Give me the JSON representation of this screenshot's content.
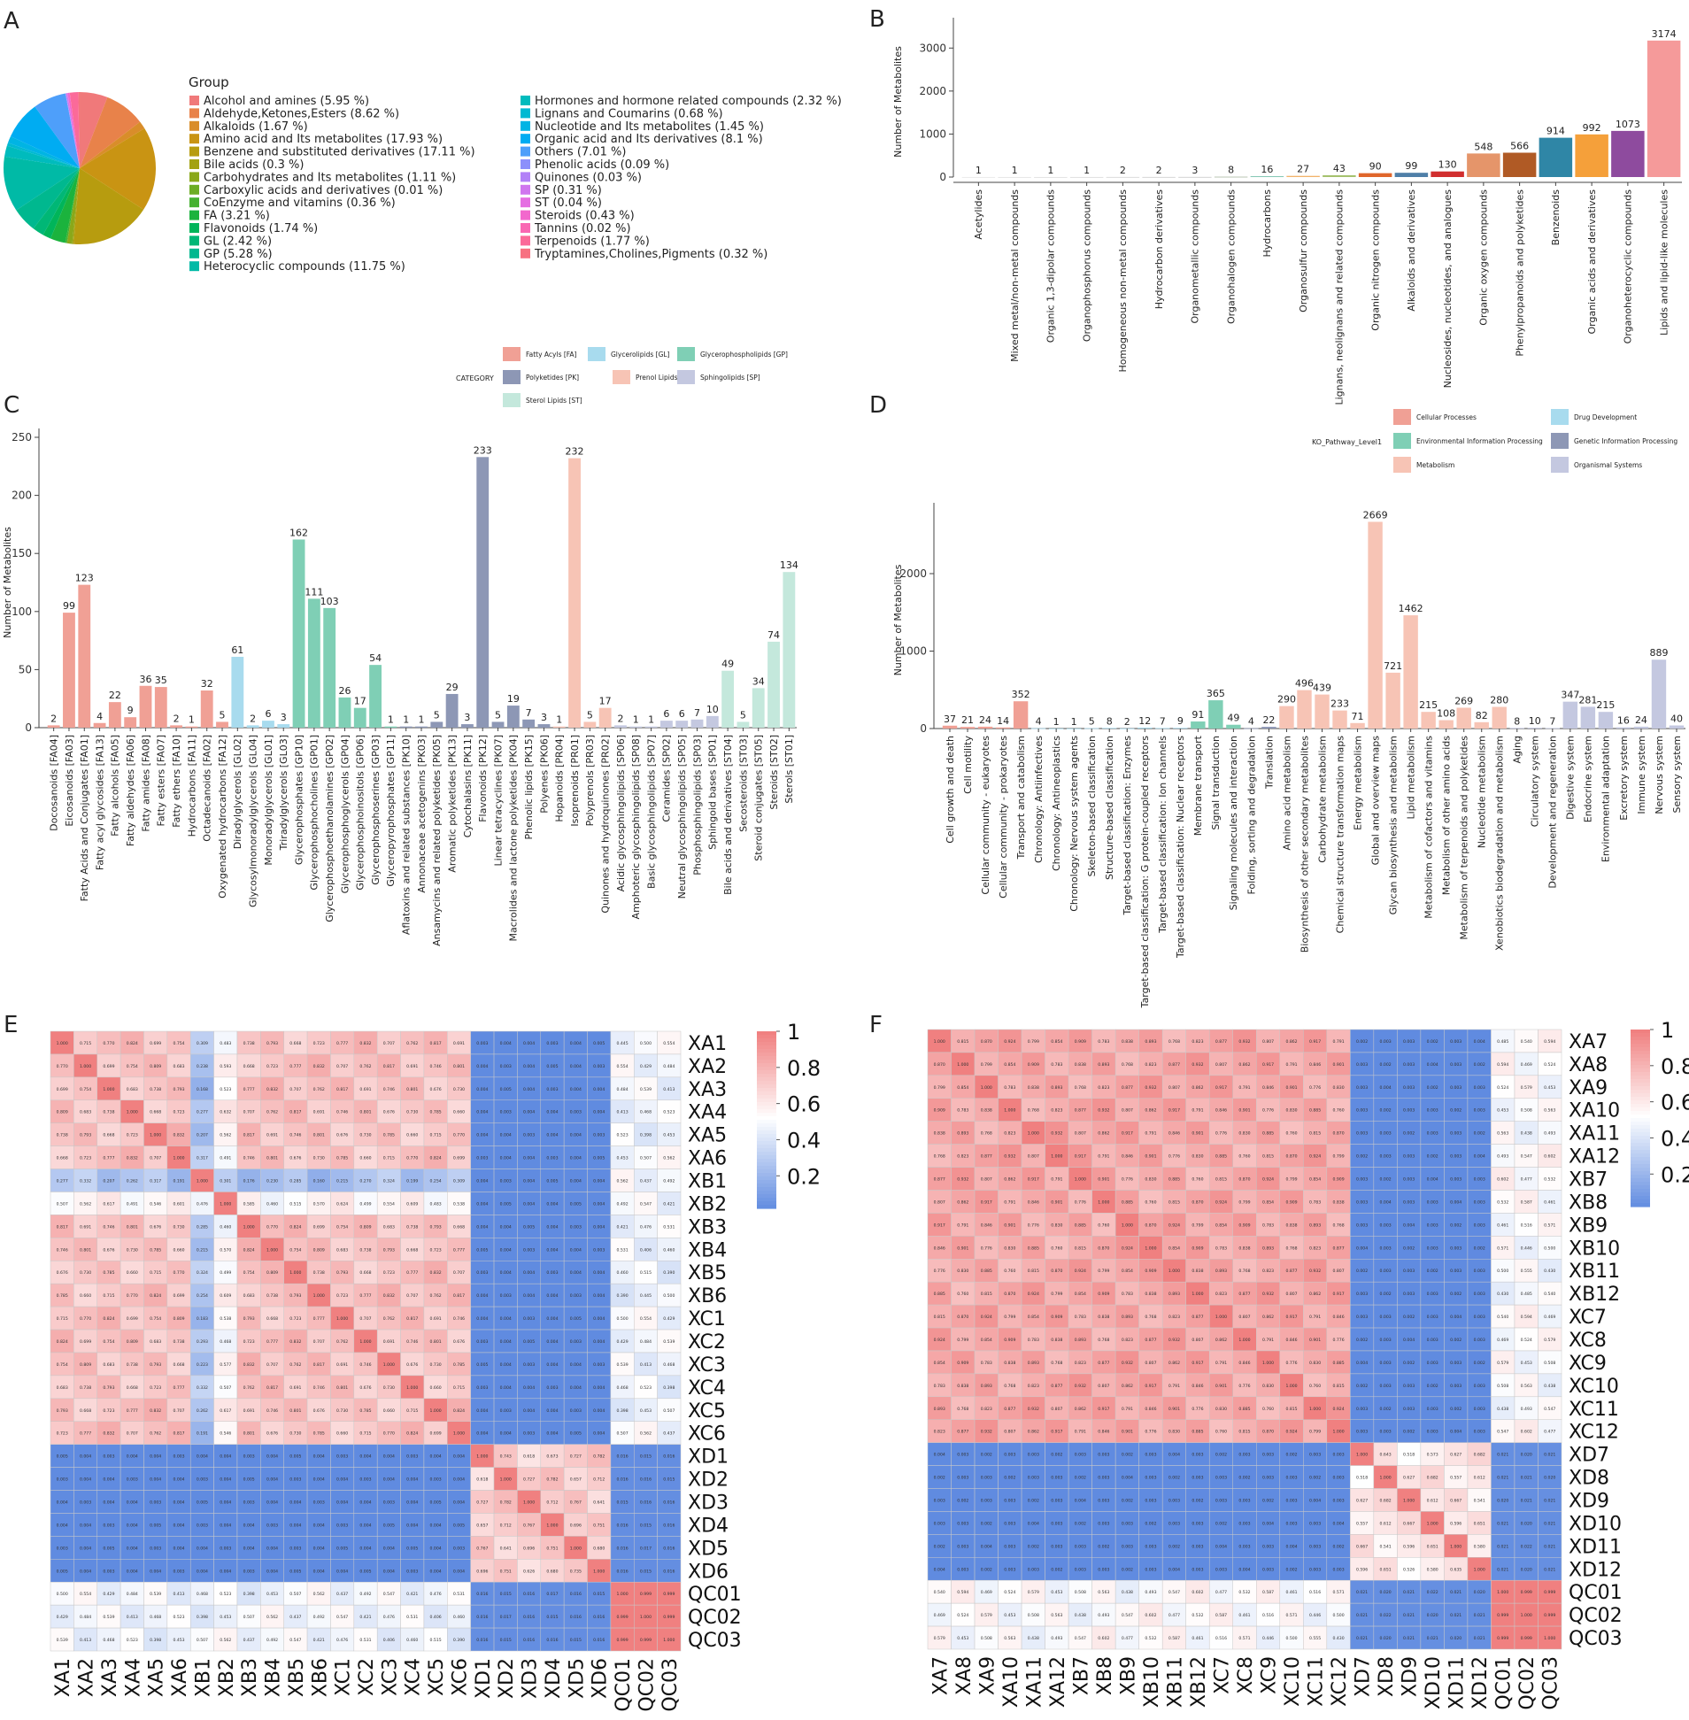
{
  "panel_labels": [
    "A",
    "B",
    "C",
    "D",
    "E",
    "F"
  ],
  "chart_data": [
    {
      "panel": "A",
      "type": "pie",
      "legend_title": "Group",
      "slices": [
        {
          "label": "Alcohol and amines (5.95 %)",
          "value": 5.95,
          "color": "#f0797a"
        },
        {
          "label": "Aldehyde,Ketones,Esters (8.62 %)",
          "value": 8.62,
          "color": "#e8824a"
        },
        {
          "label": "Alkaloids (1.67 %)",
          "value": 1.67,
          "color": "#d98d2a"
        },
        {
          "label": "Amino acid and Its metabolites (17.93 %)",
          "value": 17.93,
          "color": "#c99413"
        },
        {
          "label": "Benzene and substituted derivatives (17.11 %)",
          "value": 17.11,
          "color": "#b79c0f"
        },
        {
          "label": "Bile acids (0.3 %)",
          "value": 0.3,
          "color": "#a3a211"
        },
        {
          "label": "Carbohydrates and Its metabolites (1.11 %)",
          "value": 1.11,
          "color": "#8aa81a"
        },
        {
          "label": "Carboxylic acids and derivatives (0.01 %)",
          "value": 0.01,
          "color": "#6cad24"
        },
        {
          "label": "CoEnzyme and vitamins (0.36 %)",
          "value": 0.36,
          "color": "#45b12f"
        },
        {
          "label": "FA (3.21 %)",
          "value": 3.21,
          "color": "#1bb33d"
        },
        {
          "label": "Flavonoids (1.74 %)",
          "value": 1.74,
          "color": "#00b55a"
        },
        {
          "label": "GL (2.42 %)",
          "value": 2.42,
          "color": "#00b776"
        },
        {
          "label": "GP (5.28 %)",
          "value": 5.28,
          "color": "#00b88f"
        },
        {
          "label": "Heterocyclic compounds (11.75 %)",
          "value": 11.75,
          "color": "#00baa6"
        },
        {
          "label": "Hormones and hormone related compounds (2.32 %)",
          "value": 2.32,
          "color": "#00bbbd"
        },
        {
          "label": "Lignans and Coumarins (0.68 %)",
          "value": 0.68,
          "color": "#00b9d2"
        },
        {
          "label": "Nucleotide and Its metabolites (1.45 %)",
          "value": 1.45,
          "color": "#00b4e4"
        },
        {
          "label": "Organic acid and Its derivatives (8.1 %)",
          "value": 8.1,
          "color": "#00acf2"
        },
        {
          "label": "Others (7.01 %)",
          "value": 7.01,
          "color": "#4e9ffa"
        },
        {
          "label": "Phenolic acids (0.09 %)",
          "value": 0.09,
          "color": "#8c90fb"
        },
        {
          "label": "Quinones (0.03 %)",
          "value": 0.03,
          "color": "#b281f7"
        },
        {
          "label": "SP (0.31 %)",
          "value": 0.31,
          "color": "#d076ef"
        },
        {
          "label": "ST (0.04 %)",
          "value": 0.04,
          "color": "#e56ee2"
        },
        {
          "label": "Steroids (0.43 %)",
          "value": 0.43,
          "color": "#f268cd"
        },
        {
          "label": "Tannins (0.02 %)",
          "value": 0.02,
          "color": "#f967b3"
        },
        {
          "label": "Terpenoids (1.77 %)",
          "value": 1.77,
          "color": "#fb6a99"
        },
        {
          "label": "Tryptamines,Cholines,Pigments (0.32 %)",
          "value": 0.32,
          "color": "#f77181"
        }
      ]
    },
    {
      "panel": "B",
      "type": "bar",
      "ylabel": "Number of Metabolites",
      "ylim": [
        0,
        3500
      ],
      "yticks": [
        0,
        1000,
        2000,
        3000
      ],
      "categories": [
        "Acetylides",
        "Mixed metal/non-metal compounds",
        "Organic 1,3-dipolar compounds",
        "Organophosphorus compounds",
        "Homogeneous non-metal compounds",
        "Hydrocarbon derivatives",
        "Organometallic compounds",
        "Organohalogen compounds",
        "Hydrocarbons",
        "Organosulfur compounds",
        "Lignans, neolignans and related compounds",
        "Organic nitrogen compounds",
        "Alkaloids and derivatives",
        "Nucleosides, nucleotides, and analogues",
        "Organic oxygen compounds",
        "Phenylpropanoids and polyketides",
        "Benzenoids",
        "Organic acids and derivatives",
        "Organoheterocyclic compounds",
        "Lipids and lipid-like molecules"
      ],
      "values": [
        1,
        1,
        1,
        1,
        2,
        2,
        3,
        8,
        16,
        27,
        43,
        90,
        99,
        130,
        548,
        566,
        914,
        992,
        1073,
        3174
      ],
      "colors": [
        "#e6e6e6",
        "#e0e0e0",
        "#dcdcdc",
        "#d8d8d8",
        "#d2d2d2",
        "#cccccc",
        "#c8c8c8",
        "#a9b8a0",
        "#63b9a0",
        "#f2b36b",
        "#a6c26e",
        "#e0662b",
        "#4f7fa8",
        "#d12e2e",
        "#e5956a",
        "#b05a25",
        "#2f86a6",
        "#f5a03a",
        "#8e4b9e",
        "#f59a9a"
      ]
    },
    {
      "panel": "C",
      "type": "bar",
      "ylabel": "Number of Metabolites",
      "ylim": [
        0,
        250
      ],
      "yticks": [
        0,
        50,
        100,
        150,
        200,
        250
      ],
      "legend_title": "CATEGORY",
      "legend": [
        {
          "label": "Fatty Acyls [FA]",
          "color": "#f0a095"
        },
        {
          "label": "Glycerolipids [GL]",
          "color": "#a8dbee"
        },
        {
          "label": "Glycerophospholipids [GP]",
          "color": "#7fcfb5"
        },
        {
          "label": "Polyketides [PK]",
          "color": "#8d97b5"
        },
        {
          "label": "Prenol Lipids [PR]",
          "color": "#f7c4b5"
        },
        {
          "label": "Sphingolipids [SP]",
          "color": "#c4c8e0"
        },
        {
          "label": "Sterol Lipids [ST]",
          "color": "#c4e8dc"
        }
      ],
      "categories": [
        "Docosanoids [FA04]",
        "Eicosanoids [FA03]",
        "Fatty Acids and Conjugates [FA01]",
        "Fatty acyl glycosides [FA13]",
        "Fatty alcohols [FA05]",
        "Fatty aldehydes [FA06]",
        "Fatty amides [FA08]",
        "Fatty esters [FA07]",
        "Fatty ethers [FA10]",
        "Hydrocarbons [FA11]",
        "Octadecanoids [FA02]",
        "Oxygenated hydrocarbons [FA12]",
        "Diradylglycerols [GL02]",
        "Glycosylmonoradylglycerols [GL04]",
        "Monoradylglycerols [GL01]",
        "Triradylglycerols [GL03]",
        "Glycerophosphates [GP10]",
        "Glycerophosphocholines [GP01]",
        "Glycerophosphoethanolamines [GP02]",
        "Glycerophosphoglycerols [GP04]",
        "Glycerophosphoinositols [GP06]",
        "Glycerophosphoserines [GP03]",
        "Glyceropyrophosphates [GP11]",
        "Aflatoxins and related substances [PK10]",
        "Annonaceae acetogenins [PK03]",
        "Ansamycins and related polyketides [PK05]",
        "Aromatic polyketides [PK13]",
        "Cytochalasins [PK11]",
        "Flavonoids [PK12]",
        "Linear tetracyclines [PK07]",
        "Macrolides and lactone polyketides [PK04]",
        "Phenolic lipids [PK15]",
        "Polyenes [PK06]",
        "Hopanoids [PR04]",
        "Isoprenoids [PR01]",
        "Polyprenols [PR03]",
        "Quinones and hydroquinones [PR02]",
        "Acidic glycosphingolipids [SP06]",
        "Amphoteric glycosphingolipids [SP08]",
        "Basic glycosphingolipids [SP07]",
        "Ceramides [SP02]",
        "Neutral glycosphingolipids [SP05]",
        "Phosphosphingolipids [SP03]",
        "Sphingoid bases [SP01]",
        "Bile acids and derivatives [ST04]",
        "Secosteroids [ST03]",
        "Steroid conjugates [ST05]",
        "Steroids [ST02]",
        "Sterols [ST01]"
      ],
      "values": [
        2,
        99,
        123,
        4,
        22,
        9,
        36,
        35,
        2,
        1,
        32,
        5,
        61,
        2,
        6,
        3,
        162,
        111,
        103,
        26,
        17,
        54,
        1,
        1,
        1,
        5,
        29,
        3,
        233,
        5,
        19,
        7,
        3,
        1,
        232,
        5,
        17,
        2,
        1,
        1,
        6,
        6,
        7,
        10,
        49,
        5,
        34,
        74,
        134
      ],
      "groups": [
        "FA",
        "FA",
        "FA",
        "FA",
        "FA",
        "FA",
        "FA",
        "FA",
        "FA",
        "FA",
        "FA",
        "FA",
        "GL",
        "GL",
        "GL",
        "GL",
        "GP",
        "GP",
        "GP",
        "GP",
        "GP",
        "GP",
        "GP",
        "PK",
        "PK",
        "PK",
        "PK",
        "PK",
        "PK",
        "PK",
        "PK",
        "PK",
        "PK",
        "PR",
        "PR",
        "PR",
        "PR",
        "SP",
        "SP",
        "SP",
        "SP",
        "SP",
        "SP",
        "SP",
        "ST",
        "ST",
        "ST",
        "ST",
        "ST"
      ]
    },
    {
      "panel": "D",
      "type": "bar",
      "ylabel": "Number of Metabolites",
      "ylim": [
        0,
        2800
      ],
      "yticks": [
        0,
        1000,
        2000
      ],
      "legend_title": "KO_Pathway_Level1",
      "legend": [
        {
          "label": "Cellular Processes",
          "color": "#f0a095"
        },
        {
          "label": "Drug Development",
          "color": "#a8dbee"
        },
        {
          "label": "Environmental Information Processing",
          "color": "#7fcfb5"
        },
        {
          "label": "Genetic Information Processing",
          "color": "#8d97b5"
        },
        {
          "label": "Metabolism",
          "color": "#f7c4b5"
        },
        {
          "label": "Organismal Systems",
          "color": "#c4c8e0"
        }
      ],
      "categories": [
        "Cell growth and death",
        "Cell motility",
        "Cellular community - eukaryotes",
        "Cellular community - prokaryotes",
        "Transport and catabolism",
        "Chronology: Antiinfectives",
        "Chronology: Antineoplastics",
        "Chronology: Nervous system agents",
        "Skeleton-based classification",
        "Structure-based classification",
        "Target-based classification: Enzymes",
        "Target-based classification: G protein-coupled receptors",
        "Target-based classification: Ion channels",
        "Target-based classification: Nuclear receptors",
        "Membrane transport",
        "Signal transduction",
        "Signaling molecules and interaction",
        "Folding, sorting and degradation",
        "Translation",
        "Amino acid metabolism",
        "Biosynthesis of other secondary metabolites",
        "Carbohydrate metabolism",
        "Chemical structure transformation maps",
        "Energy metabolism",
        "Global and overview maps",
        "Glycan biosynthesis and metabolism",
        "Lipid metabolism",
        "Metabolism of cofactors and vitamins",
        "Metabolism of other amino acids",
        "Metabolism of terpenoids and polyketides",
        "Nucleotide metabolism",
        "Xenobiotics biodegradation and metabolism",
        "Aging",
        "Circulatory system",
        "Development and regeneration",
        "Digestive system",
        "Endocrine system",
        "Environmental adaptation",
        "Excretory system",
        "Immune system",
        "Nervous system",
        "Sensory system"
      ],
      "values": [
        37,
        21,
        24,
        14,
        352,
        4,
        1,
        1,
        5,
        8,
        2,
        12,
        7,
        9,
        91,
        365,
        49,
        4,
        22,
        290,
        496,
        439,
        233,
        71,
        2669,
        721,
        1462,
        215,
        108,
        269,
        82,
        280,
        8,
        10,
        7,
        347,
        281,
        215,
        16,
        24,
        889,
        40
      ],
      "groups": [
        "CP",
        "CP",
        "CP",
        "CP",
        "CP",
        "DD",
        "DD",
        "DD",
        "DD",
        "DD",
        "DD",
        "DD",
        "DD",
        "DD",
        "EIP",
        "EIP",
        "EIP",
        "GIP",
        "GIP",
        "M",
        "M",
        "M",
        "M",
        "M",
        "M",
        "M",
        "M",
        "M",
        "M",
        "M",
        "M",
        "M",
        "OS",
        "OS",
        "OS",
        "OS",
        "OS",
        "OS",
        "OS",
        "OS",
        "OS",
        "OS"
      ]
    },
    {
      "panel": "E",
      "type": "heatmap",
      "rows": [
        "XA1",
        "XA2",
        "XA3",
        "XA4",
        "XA5",
        "XA6",
        "XB1",
        "XB2",
        "XB3",
        "XB4",
        "XB5",
        "XB6",
        "XC1",
        "XC2",
        "XC3",
        "XC4",
        "XC5",
        "XC6",
        "XD1",
        "XD2",
        "XD3",
        "XD4",
        "XD5",
        "XD6",
        "QC01",
        "QC02",
        "QC03"
      ],
      "columns": [
        "XA1",
        "XA2",
        "XA3",
        "XA4",
        "XA5",
        "XA6",
        "XB1",
        "XB2",
        "XB3",
        "XB4",
        "XB5",
        "XB6",
        "XC1",
        "XC2",
        "XC3",
        "XC4",
        "XC5",
        "XC6",
        "XD1",
        "XD2",
        "XD3",
        "XD4",
        "XD5",
        "XD6",
        "QC01",
        "QC02",
        "QC03"
      ],
      "colorbar_ticks": [
        "1",
        "0.8",
        "0.6",
        "0.4",
        "0.2"
      ],
      "group_sizes": [
        18,
        6,
        3
      ],
      "block_values": [
        [
          0.75,
          0.003,
          0.48
        ],
        [
          0.003,
          0.7,
          0.015
        ],
        [
          0.48,
          0.015,
          1.0
        ]
      ],
      "special_rows": {
        "XB1": 0.25,
        "XB2": 0.55
      },
      "values_note": "cell labels are the Pearson correlation values printed in each cell"
    },
    {
      "panel": "F",
      "type": "heatmap",
      "rows": [
        "XA7",
        "XA8",
        "XA9",
        "XA10",
        "XA11",
        "XA12",
        "XB7",
        "XB8",
        "XB9",
        "XB10",
        "XB11",
        "XB12",
        "XC7",
        "XC8",
        "XC9",
        "XC10",
        "XC11",
        "XC12",
        "XD7",
        "XD8",
        "XD9",
        "XD10",
        "XD11",
        "XD12",
        "QC01",
        "QC02",
        "QC03"
      ],
      "columns": [
        "XA7",
        "XA8",
        "XA9",
        "XA10",
        "XA11",
        "XA12",
        "XB7",
        "XB8",
        "XB9",
        "XB10",
        "XB11",
        "XB12",
        "XC7",
        "XC8",
        "XC9",
        "XC10",
        "XC11",
        "XC12",
        "XD7",
        "XD8",
        "XD9",
        "XD10",
        "XD11",
        "XD12",
        "QC01",
        "QC02",
        "QC03"
      ],
      "colorbar_ticks": [
        "1",
        "0.8",
        "0.6",
        "0.4",
        "0.2"
      ],
      "group_sizes": [
        18,
        6,
        3
      ],
      "block_values": [
        [
          0.85,
          0.002,
          0.52
        ],
        [
          0.002,
          0.6,
          0.02
        ],
        [
          0.52,
          0.02,
          1.0
        ]
      ],
      "special_rows": {},
      "values_note": "cell labels are the Pearson correlation values printed in each cell"
    }
  ]
}
